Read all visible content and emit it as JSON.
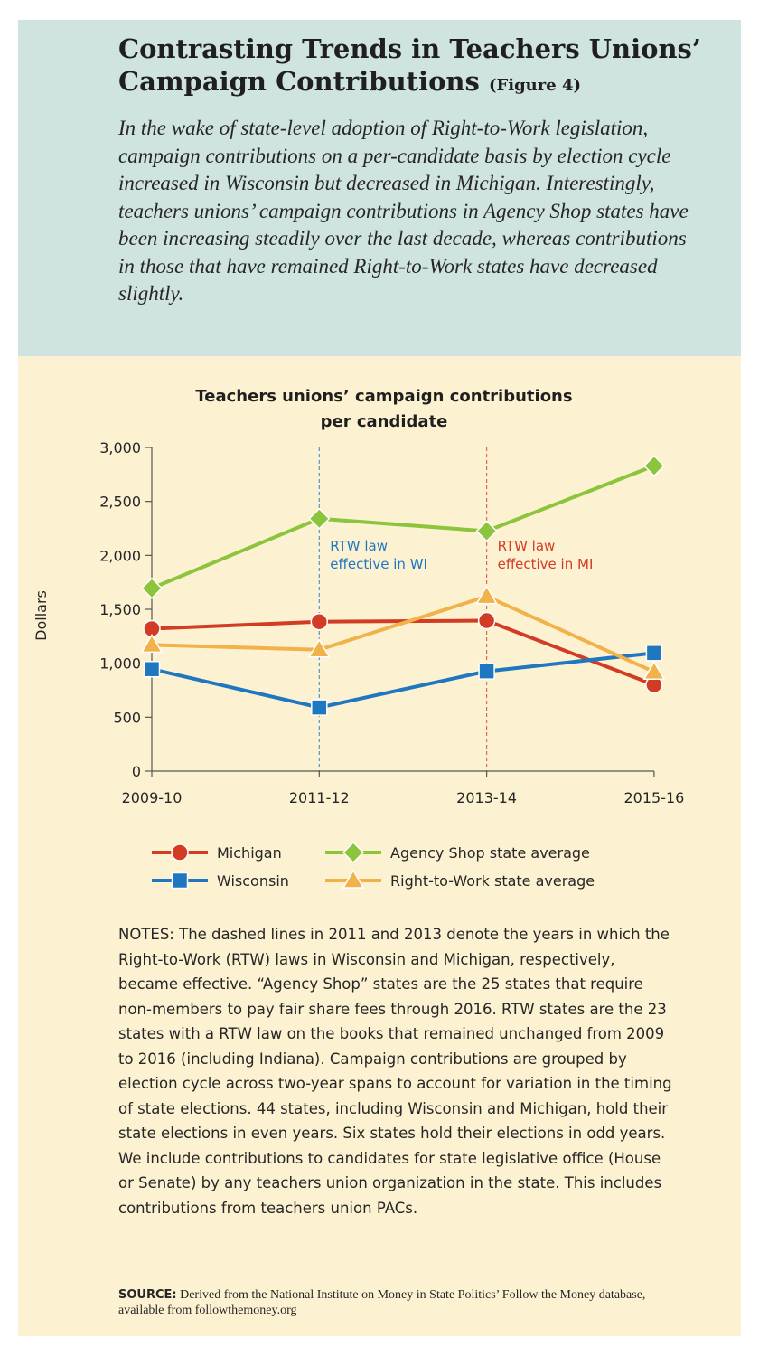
{
  "header": {
    "title_line1": "Contrasting Trends in Teachers Unions’",
    "title_line2": "Campaign Contributions",
    "figure_label": "(Figure 4)",
    "lede": "In the wake of state-level adoption of Right-to-Work legislation, campaign contributions on a per-candidate basis by election cycle increased in Wisconsin but decreased in Michigan. Interestingly, teachers unions’ campaign contributions in Agency Shop states have been increasing steadily over the last decade, whereas contributions in those that have remained Right-to-Work states have decreased slightly."
  },
  "chart_data": {
    "type": "line",
    "title_line1": "Teachers unions’ campaign contributions",
    "title_line2": "per candidate",
    "ylabel": "Dollars",
    "xlabel": "",
    "categories": [
      "2009-10",
      "2011-12",
      "2013-14",
      "2015-16"
    ],
    "yticks": [
      "0",
      "500",
      "1,000",
      "1,500",
      "2,000",
      "2,500",
      "3,000"
    ],
    "ylim": [
      0,
      3000
    ],
    "grid": false,
    "legend_position": "bottom",
    "series": [
      {
        "name": "Michigan",
        "marker": "circle",
        "color": "#d23c24",
        "values": [
          1320,
          1385,
          1395,
          800
        ]
      },
      {
        "name": "Wisconsin",
        "marker": "square",
        "color": "#1f77c0",
        "values": [
          945,
          590,
          925,
          1095
        ]
      },
      {
        "name": "Agency Shop state average",
        "marker": "diamond",
        "color": "#8cc43c",
        "values": [
          1695,
          2340,
          2225,
          2830
        ]
      },
      {
        "name": "Right-to-Work state average",
        "marker": "triangle",
        "color": "#f2b24a",
        "values": [
          1170,
          1125,
          1620,
          920
        ]
      }
    ],
    "annotations": [
      {
        "category_index": 1,
        "line1": "RTW law",
        "line2": "effective in WI",
        "color": "#1f77c0"
      },
      {
        "category_index": 2,
        "line1": "RTW law",
        "line2": "effective in MI",
        "color": "#d23c24"
      }
    ]
  },
  "notes": "NOTES: The dashed lines in 2011 and 2013 denote the years in which the Right-to-Work (RTW) laws in Wisconsin and Michigan, respectively, became effective. “Agency Shop” states are the 25 states that require non-members to pay fair share fees through 2016. RTW states are the 23 states with a RTW law on the books that remained unchanged from 2009 to 2016 (including Indiana). Campaign contributions are grouped by election cycle across two-year spans to account for variation in the timing of state elections. 44 states, including Wisconsin and Michigan, hold their state elections in even years. Six states hold their elections in odd years. We include contributions to candidates for state legislative office (House or Senate) by any teachers union organization in the state. This includes contributions from teachers union PACs.",
  "source": {
    "label": "SOURCE:",
    "text": "Derived from the National Institute on Money in State Politics’ Follow the Money database, available from followthemoney.org"
  }
}
